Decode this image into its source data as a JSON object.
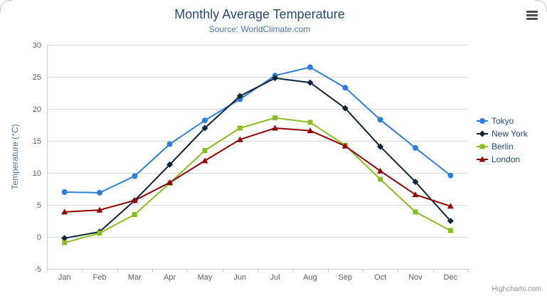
{
  "chart_data": {
    "type": "line",
    "title": "Monthly Average Temperature",
    "subtitle": "Source: WorldClimate.com",
    "ylabel": "Temperature (°C)",
    "ylim": [
      -5,
      30
    ],
    "ytick_interval": 5,
    "grid": true,
    "legend_position": "right",
    "categories": [
      "Jan",
      "Feb",
      "Mar",
      "Apr",
      "May",
      "Jun",
      "Jul",
      "Aug",
      "Sep",
      "Oct",
      "Nov",
      "Dec"
    ],
    "series": [
      {
        "name": "Tokyo",
        "color": "#2f7ed8",
        "marker": "circle",
        "values": [
          7.0,
          6.9,
          9.5,
          14.5,
          18.2,
          21.5,
          25.2,
          26.5,
          23.3,
          18.3,
          13.9,
          9.6
        ]
      },
      {
        "name": "New York",
        "color": "#0d233a",
        "marker": "diamond",
        "values": [
          -0.2,
          0.8,
          5.7,
          11.3,
          17.0,
          22.0,
          24.8,
          24.1,
          20.1,
          14.1,
          8.6,
          2.5
        ]
      },
      {
        "name": "Berlin",
        "color": "#8bbc21",
        "marker": "square",
        "values": [
          -0.9,
          0.6,
          3.5,
          8.4,
          13.5,
          17.0,
          18.6,
          17.9,
          14.3,
          9.0,
          3.9,
          1.0
        ]
      },
      {
        "name": "London",
        "color": "#910000",
        "marker": "triangle",
        "values": [
          3.9,
          4.2,
          5.7,
          8.5,
          11.9,
          15.2,
          17.0,
          16.6,
          14.2,
          10.3,
          6.6,
          4.8
        ]
      }
    ]
  },
  "credits": {
    "text": "Highcharts.com"
  },
  "colors": {
    "title": "#274b6d",
    "subtitle": "#4d759e",
    "axis_label": "#606060",
    "axis_title": "#4d759e",
    "grid": "#d8d8d8",
    "axis_line": "#c0d0e0"
  },
  "icons": {
    "export_menu": "hamburger-icon"
  }
}
